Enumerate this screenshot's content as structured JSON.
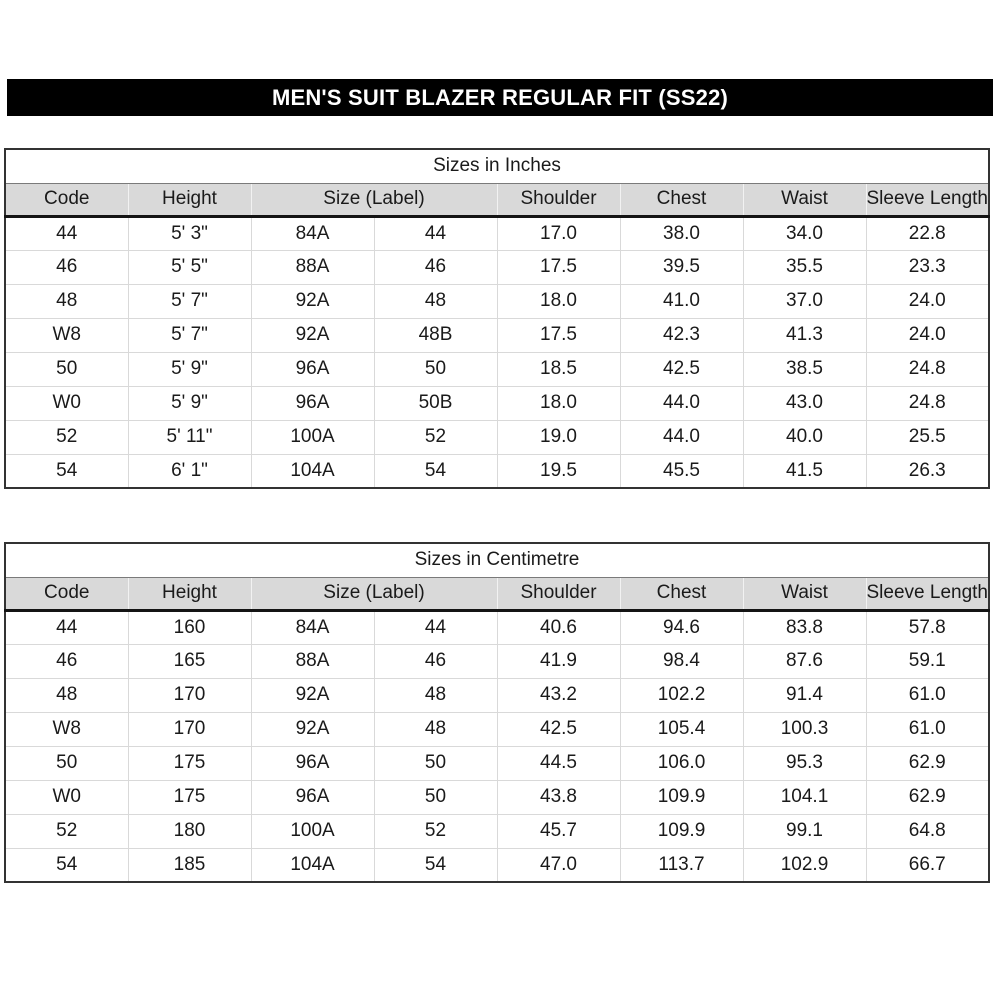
{
  "banner": {
    "title": "MEN'S SUIT BLAZER REGULAR FIT (SS22)",
    "bg_color": "#000000",
    "text_color": "#ffffff"
  },
  "colors": {
    "header_row_bg": "#d9d9d9",
    "gridline": "#d9d9d9",
    "outer_border": "#333333",
    "text": "#1a1a1a"
  },
  "tables": [
    {
      "title": "Sizes in Inches",
      "header_cells": [
        {
          "label": "Code",
          "span": 1
        },
        {
          "label": "Height",
          "span": 1
        },
        {
          "label": "Size (Label)",
          "span": 2
        },
        {
          "label": "Shoulder",
          "span": 1
        },
        {
          "label": "Chest",
          "span": 1
        },
        {
          "label": "Waist",
          "span": 1
        },
        {
          "label": "Sleeve Length",
          "span": 1
        }
      ],
      "rows": [
        [
          "44",
          "5' 3\"",
          "84A",
          "44",
          "17.0",
          "38.0",
          "34.0",
          "22.8"
        ],
        [
          "46",
          "5' 5\"",
          "88A",
          "46",
          "17.5",
          "39.5",
          "35.5",
          "23.3"
        ],
        [
          "48",
          "5' 7\"",
          "92A",
          "48",
          "18.0",
          "41.0",
          "37.0",
          "24.0"
        ],
        [
          "W8",
          "5' 7\"",
          "92A",
          "48B",
          "17.5",
          "42.3",
          "41.3",
          "24.0"
        ],
        [
          "50",
          "5' 9\"",
          "96A",
          "50",
          "18.5",
          "42.5",
          "38.5",
          "24.8"
        ],
        [
          "W0",
          "5' 9\"",
          "96A",
          "50B",
          "18.0",
          "44.0",
          "43.0",
          "24.8"
        ],
        [
          "52",
          "5' 11\"",
          "100A",
          "52",
          "19.0",
          "44.0",
          "40.0",
          "25.5"
        ],
        [
          "54",
          "6' 1\"",
          "104A",
          "54",
          "19.5",
          "45.5",
          "41.5",
          "26.3"
        ]
      ]
    },
    {
      "title": "Sizes in Centimetre",
      "header_cells": [
        {
          "label": "Code",
          "span": 1
        },
        {
          "label": "Height",
          "span": 1
        },
        {
          "label": "Size (Label)",
          "span": 2
        },
        {
          "label": "Shoulder",
          "span": 1
        },
        {
          "label": "Chest",
          "span": 1
        },
        {
          "label": "Waist",
          "span": 1
        },
        {
          "label": "Sleeve Length",
          "span": 1
        }
      ],
      "rows": [
        [
          "44",
          "160",
          "84A",
          "44",
          "40.6",
          "94.6",
          "83.8",
          "57.8"
        ],
        [
          "46",
          "165",
          "88A",
          "46",
          "41.9",
          "98.4",
          "87.6",
          "59.1"
        ],
        [
          "48",
          "170",
          "92A",
          "48",
          "43.2",
          "102.2",
          "91.4",
          "61.0"
        ],
        [
          "W8",
          "170",
          "92A",
          "48",
          "42.5",
          "105.4",
          "100.3",
          "61.0"
        ],
        [
          "50",
          "175",
          "96A",
          "50",
          "44.5",
          "106.0",
          "95.3",
          "62.9"
        ],
        [
          "W0",
          "175",
          "96A",
          "50",
          "43.8",
          "109.9",
          "104.1",
          "62.9"
        ],
        [
          "52",
          "180",
          "100A",
          "52",
          "45.7",
          "109.9",
          "99.1",
          "64.8"
        ],
        [
          "54",
          "185",
          "104A",
          "54",
          "47.0",
          "113.7",
          "102.9",
          "66.7"
        ]
      ]
    }
  ]
}
